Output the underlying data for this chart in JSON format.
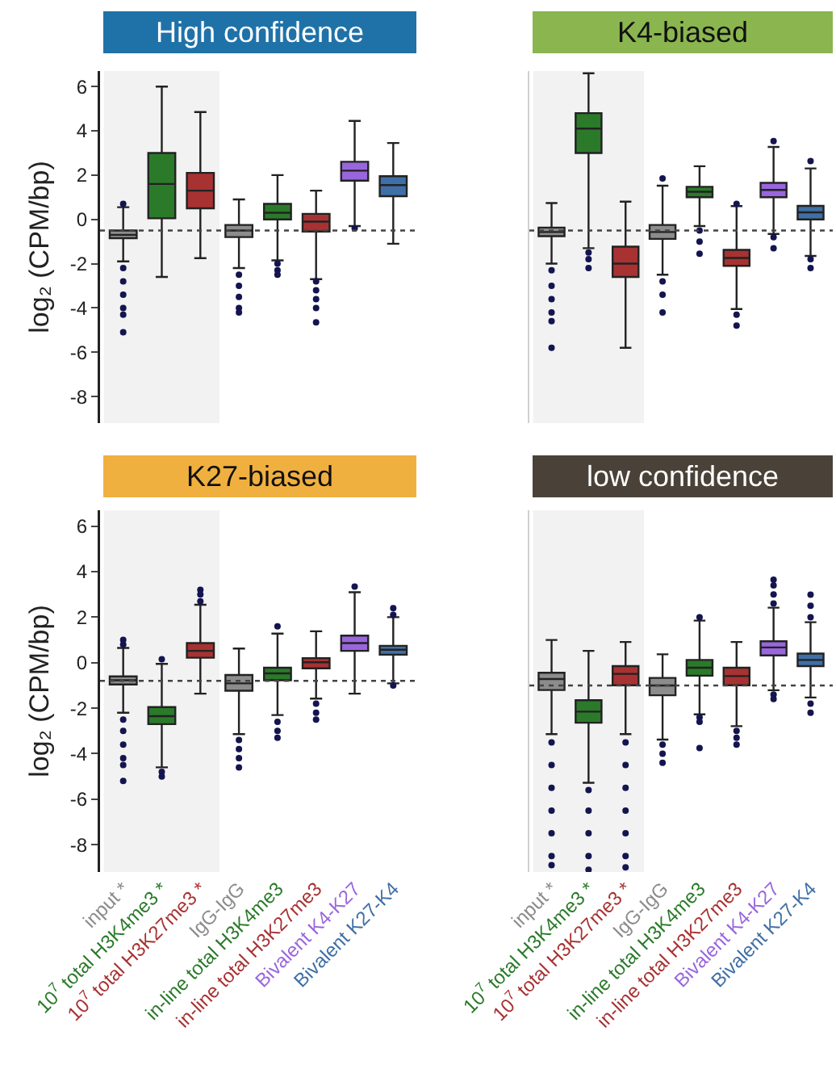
{
  "chart_data": [
    {
      "type": "box",
      "title": "High confidence",
      "ylabel": "log₂ (CPM/bp)",
      "tick_labels": "y",
      "categories": [
        "input *",
        "10$^{7}$ total H3K4me3 *",
        "10$^{7}$ total H3K27me3 *",
        "IgG-IgG",
        "in-line total H3K4me3",
        "in-line total H3K27me3",
        "Bivalent K4-K27",
        "Bivalent K27-K4"
      ],
      "colors": [
        "#8c8c8c",
        "#2a7a2a",
        "#a83232",
        "#8c8c8c",
        "#2a7a2a",
        "#a83232",
        "#9966dd",
        "#3f6fa6"
      ],
      "boxes": [
        {
          "low": -1.9,
          "q1": -0.85,
          "median": -0.7,
          "q3": -0.5,
          "high": 0.55,
          "outliers": [
            0.7,
            -2.2,
            -2.8,
            -3.4,
            -4.0,
            -4.3,
            -5.1
          ]
        },
        {
          "low": -2.6,
          "q1": 0.05,
          "median": 1.6,
          "q3": 3.0,
          "high": 6.0
        },
        {
          "low": -1.75,
          "q1": 0.5,
          "median": 1.3,
          "q3": 2.1,
          "high": 4.85
        },
        {
          "low": -2.2,
          "q1": -0.8,
          "median": -0.5,
          "q3": -0.25,
          "high": 0.9,
          "outliers": [
            -2.5,
            -3.0,
            -3.5,
            -4.0,
            -4.2
          ]
        },
        {
          "low": -1.85,
          "q1": 0.0,
          "median": 0.3,
          "q3": 0.7,
          "high": 2.0,
          "outliers": [
            -2.0,
            -2.3,
            -2.5
          ]
        },
        {
          "low": -2.7,
          "q1": -0.55,
          "median": -0.1,
          "q3": 0.25,
          "high": 1.3,
          "outliers": [
            -2.8,
            -3.2,
            -3.6,
            -4.0,
            -4.65
          ]
        },
        {
          "low": -0.3,
          "q1": 1.75,
          "median": 2.2,
          "q3": 2.6,
          "high": 4.45,
          "outliers": [
            -0.4
          ]
        },
        {
          "low": -1.1,
          "q1": 1.05,
          "median": 1.55,
          "q3": 1.95,
          "high": 3.45
        }
      ],
      "ylim": [
        -9.2,
        6.7
      ],
      "yticks": [
        -8,
        -6,
        -4,
        -2,
        0,
        2,
        4,
        6
      ],
      "ref_lines": [
        {
          "axis": "y",
          "value": -0.5,
          "line_style": "dotted"
        }
      ],
      "bands": [
        {
          "axis": "x",
          "from": "input *",
          "to": "10$^{7}$ total H3K27me3 *",
          "color": "#f2f2f2"
        }
      ]
    },
    {
      "type": "box",
      "title": "K4-biased",
      "tick_labels": false,
      "categories": [
        "input *",
        "10$^{7}$ total H3K4me3 *",
        "10$^{7}$ total H3K27me3 *",
        "IgG-IgG",
        "in-line total H3K4me3",
        "in-line total H3K27me3",
        "Bivalent K4-K27",
        "Bivalent K27-K4"
      ],
      "colors": [
        "#8c8c8c",
        "#2a7a2a",
        "#a83232",
        "#8c8c8c",
        "#2a7a2a",
        "#a83232",
        "#9966dd",
        "#3f6fa6"
      ],
      "boxes": [
        {
          "low": -2.0,
          "q1": -0.76,
          "median": -0.57,
          "q3": -0.37,
          "high": 0.74,
          "outliers": [
            -2.3,
            -3.0,
            -3.6,
            -4.2,
            -4.6,
            -5.8
          ]
        },
        {
          "low": -1.3,
          "q1": 3.0,
          "median": 4.1,
          "q3": 4.8,
          "high": 6.6,
          "outliers": [
            -1.5,
            -1.8,
            -2.2
          ]
        },
        {
          "low": -5.8,
          "q1": -2.6,
          "median": -2.0,
          "q3": -1.23,
          "high": 0.8
        },
        {
          "low": -2.5,
          "q1": -0.88,
          "median": -0.57,
          "q3": -0.25,
          "high": 1.52,
          "outliers": [
            1.85,
            -2.8,
            -3.4,
            -4.2
          ]
        },
        {
          "low": -0.3,
          "q1": 1.0,
          "median": 1.25,
          "q3": 1.47,
          "high": 2.4,
          "outliers": [
            -0.5,
            -1.0,
            -1.55
          ]
        },
        {
          "low": -4.05,
          "q1": -2.1,
          "median": -1.74,
          "q3": -1.38,
          "high": 0.6,
          "outliers": [
            0.7,
            -4.3,
            -4.8
          ]
        },
        {
          "low": -0.66,
          "q1": 1.0,
          "median": 1.33,
          "q3": 1.65,
          "high": 3.27,
          "outliers": [
            3.54,
            -0.8,
            -1.3
          ]
        },
        {
          "low": -1.65,
          "q1": 0.0,
          "median": 0.32,
          "q3": 0.61,
          "high": 2.3,
          "outliers": [
            2.63,
            -1.8,
            -2.2
          ]
        }
      ],
      "ylim": [
        -9.2,
        6.7
      ],
      "yticks": [
        -8,
        -6,
        -4,
        -2,
        0,
        2,
        4,
        6
      ],
      "ref_lines": [
        {
          "axis": "y",
          "value": -0.5,
          "line_style": "dotted"
        }
      ],
      "bands": [
        {
          "axis": "x",
          "from": "input *",
          "to": "10$^{7}$ total H3K27me3 *",
          "color": "#f2f2f2"
        }
      ]
    },
    {
      "type": "box",
      "title": "K27-biased",
      "ylabel": "log₂ (CPM/bp)",
      "categories": [
        "input *",
        "10$^{7}$ total H3K4me3 *",
        "10$^{7}$ total H3K27me3 *",
        "IgG-IgG",
        "in-line total H3K4me3",
        "in-line total H3K27me3",
        "Bivalent K4-K27",
        "Bivalent K27-K4"
      ],
      "colors": [
        "#8c8c8c",
        "#2a7a2a",
        "#a83232",
        "#8c8c8c",
        "#2a7a2a",
        "#a83232",
        "#9966dd",
        "#3f6fa6"
      ],
      "boxes": [
        {
          "low": -2.2,
          "q1": -0.96,
          "median": -0.77,
          "q3": -0.6,
          "high": 0.65,
          "outliers": [
            0.8,
            1.0,
            -2.5,
            -3.0,
            -3.6,
            -4.2,
            -4.5,
            -5.2
          ]
        },
        {
          "low": -4.6,
          "q1": -2.7,
          "median": -2.35,
          "q3": -1.95,
          "high": -0.05,
          "outliers": [
            0.15,
            -4.8,
            -5.0
          ]
        },
        {
          "low": -1.36,
          "q1": 0.22,
          "median": 0.52,
          "q3": 0.86,
          "high": 2.55,
          "outliers": [
            2.7,
            3.0,
            3.2
          ]
        },
        {
          "low": -3.14,
          "q1": -1.23,
          "median": -0.91,
          "q3": -0.54,
          "high": 0.62,
          "outliers": [
            -3.4,
            -3.8,
            -4.2,
            -4.6
          ]
        },
        {
          "low": -2.3,
          "q1": -0.77,
          "median": -0.47,
          "q3": -0.22,
          "high": 1.28,
          "outliers": [
            1.6,
            -2.6,
            -3.0,
            -3.3
          ]
        },
        {
          "low": -1.58,
          "q1": -0.25,
          "median": 0.02,
          "q3": 0.2,
          "high": 1.38,
          "outliers": [
            -1.8,
            -2.2,
            -2.5
          ]
        },
        {
          "low": -1.36,
          "q1": 0.52,
          "median": 0.86,
          "q3": 1.19,
          "high": 3.1,
          "outliers": [
            3.35
          ]
        },
        {
          "low": -0.91,
          "q1": 0.35,
          "median": 0.57,
          "q3": 0.74,
          "high": 2.0,
          "outliers": [
            2.1,
            2.4,
            -1.0
          ]
        }
      ],
      "ylim": [
        -9.2,
        6.7
      ],
      "yticks": [
        -8,
        -6,
        -4,
        -2,
        0,
        2,
        4,
        6
      ],
      "ref_lines": [
        {
          "axis": "y",
          "value": -0.8,
          "line_style": "dotted"
        }
      ],
      "bands": [
        {
          "axis": "x",
          "from": "input *",
          "to": "10$^{7}$ total H3K27me3 *",
          "color": "#f2f2f2"
        }
      ]
    },
    {
      "type": "box",
      "title": "low confidence",
      "tick_labels": "x",
      "categories": [
        "input *",
        "10$^{7}$ total H3K4me3 *",
        "10$^{7}$ total H3K27me3 *",
        "IgG-IgG",
        "in-line total H3K4me3",
        "in-line total H3K27me3",
        "Bivalent K4-K27",
        "Bivalent K27-K4"
      ],
      "colors": [
        "#8c8c8c",
        "#2a7a2a",
        "#a83232",
        "#8c8c8c",
        "#2a7a2a",
        "#a83232",
        "#9966dd",
        "#3f6fa6"
      ],
      "boxes": [
        {
          "low": -3.14,
          "q1": -1.2,
          "median": -0.72,
          "q3": -0.44,
          "high": 1.0,
          "outliers": [
            -3.5,
            -4.5,
            -5.5,
            -6.5,
            -7.5,
            -8.5,
            -8.9
          ]
        },
        {
          "low": -5.28,
          "q1": -2.64,
          "median": -2.15,
          "q3": -1.65,
          "high": 0.52,
          "outliers": [
            -5.6,
            -6.5,
            -7.5,
            -8.5,
            -9.1
          ]
        },
        {
          "low": -3.14,
          "q1": -0.99,
          "median": -0.49,
          "q3": -0.15,
          "high": 0.91,
          "outliers": [
            -3.5,
            -4.5,
            -5.5,
            -6.5,
            -7.5,
            -8.5,
            -9.0
          ]
        },
        {
          "low": -3.38,
          "q1": -1.43,
          "median": -1.0,
          "q3": -0.67,
          "high": 0.37,
          "outliers": [
            -3.6,
            -4.0,
            -4.4
          ]
        },
        {
          "low": -2.27,
          "q1": -0.57,
          "median": -0.22,
          "q3": 0.12,
          "high": 1.85,
          "outliers": [
            2.0,
            -2.4,
            -2.6,
            -3.75
          ]
        },
        {
          "low": -2.79,
          "q1": -0.99,
          "median": -0.59,
          "q3": -0.22,
          "high": 0.91,
          "outliers": [
            -3.0,
            -3.3,
            -3.6
          ]
        },
        {
          "low": -1.21,
          "q1": 0.32,
          "median": 0.67,
          "q3": 0.94,
          "high": 2.42,
          "outliers": [
            2.6,
            3.0,
            3.4,
            3.65,
            -1.4,
            -1.6
          ]
        },
        {
          "low": -1.53,
          "q1": -0.15,
          "median": 0.12,
          "q3": 0.4,
          "high": 1.78,
          "outliers": [
            2.0,
            2.5,
            2.99,
            -1.8,
            -2.2
          ]
        }
      ],
      "ylim": [
        -9.2,
        6.7
      ],
      "yticks": [
        -8,
        -6,
        -4,
        -2,
        0,
        2,
        4,
        6
      ],
      "ref_lines": [
        {
          "axis": "y",
          "value": -1.0,
          "line_style": "dotted"
        }
      ],
      "bands": [
        {
          "axis": "x",
          "from": "input *",
          "to": "10$^{7}$ total H3K27me3 *",
          "color": "#f2f2f2"
        }
      ]
    }
  ]
}
